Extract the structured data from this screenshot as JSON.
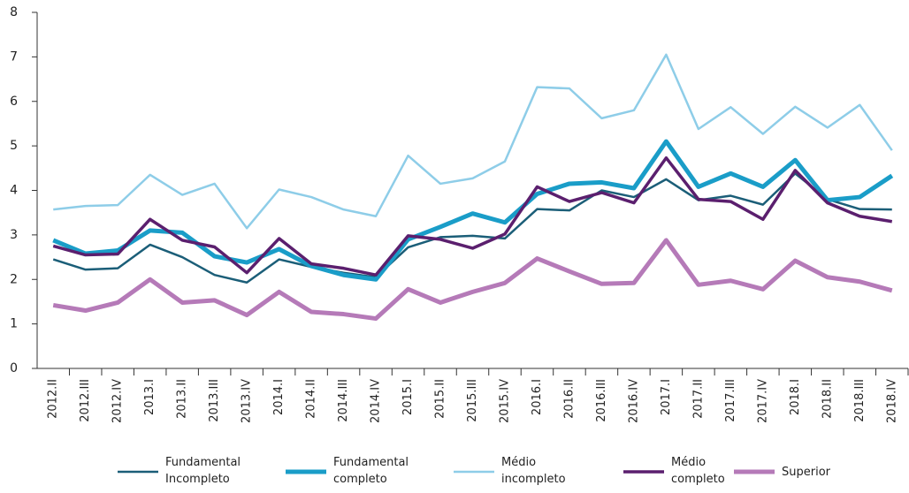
{
  "chart_data": {
    "type": "line",
    "categories": [
      "2012.II",
      "2012.III",
      "2012.IV",
      "2013.I",
      "2013.II",
      "2013.III",
      "2013.IV",
      "2014.I",
      "2014.II",
      "2014.III",
      "2014.IV",
      "2015.I",
      "2015.II",
      "2015.III",
      "2015.IV",
      "2016.I",
      "2016.II",
      "2016.III",
      "2016.IV",
      "2017.I",
      "2017.II",
      "2017.III",
      "2017.IV",
      "2018.I",
      "2018.II",
      "2018.III",
      "2018.IV"
    ],
    "series": [
      {
        "name": "Fundamental Incompleto",
        "color": "#1b5e78",
        "values": [
          2.45,
          2.22,
          2.25,
          2.78,
          2.5,
          2.1,
          1.93,
          2.45,
          2.28,
          2.15,
          2.05,
          2.72,
          2.95,
          2.98,
          2.92,
          3.58,
          3.55,
          4.0,
          3.85,
          4.25,
          3.78,
          3.88,
          3.68,
          4.38,
          3.8,
          3.58,
          3.57
        ]
      },
      {
        "name": "Fundamental completo",
        "color": "#1a9dc8",
        "values": [
          2.88,
          2.58,
          2.65,
          3.1,
          3.05,
          2.52,
          2.38,
          2.68,
          2.3,
          2.1,
          2.0,
          2.9,
          3.18,
          3.48,
          3.28,
          3.92,
          4.15,
          4.18,
          4.05,
          5.1,
          4.08,
          4.38,
          4.08,
          4.68,
          3.78,
          3.85,
          4.33
        ]
      },
      {
        "name": "Médio incompleto",
        "color": "#8ecde8",
        "values": [
          3.57,
          3.65,
          3.67,
          4.35,
          3.9,
          4.15,
          3.15,
          4.02,
          3.85,
          3.57,
          3.42,
          4.78,
          4.15,
          4.27,
          4.65,
          6.32,
          6.29,
          5.62,
          5.8,
          7.05,
          5.38,
          5.87,
          5.27,
          5.88,
          5.41,
          5.92,
          4.9
        ]
      },
      {
        "name": "Médio completo",
        "color": "#5b1f6e",
        "values": [
          2.75,
          2.55,
          2.57,
          3.35,
          2.88,
          2.73,
          2.15,
          2.92,
          2.35,
          2.25,
          2.1,
          2.98,
          2.9,
          2.7,
          3.02,
          4.08,
          3.75,
          3.95,
          3.72,
          4.73,
          3.8,
          3.75,
          3.35,
          4.45,
          3.72,
          3.42,
          3.3
        ]
      },
      {
        "name": "Superior",
        "color": "#b57ab8",
        "values": [
          1.42,
          1.3,
          1.48,
          2.0,
          1.48,
          1.53,
          1.2,
          1.72,
          1.27,
          1.22,
          1.12,
          1.78,
          1.48,
          1.72,
          1.92,
          2.47,
          2.18,
          1.9,
          1.92,
          2.88,
          1.88,
          1.97,
          1.78,
          2.42,
          2.05,
          1.95,
          1.75
        ]
      }
    ],
    "ylim": [
      0,
      8
    ],
    "yticks": [
      0,
      1,
      2,
      3,
      4,
      5,
      6,
      7,
      8
    ]
  }
}
